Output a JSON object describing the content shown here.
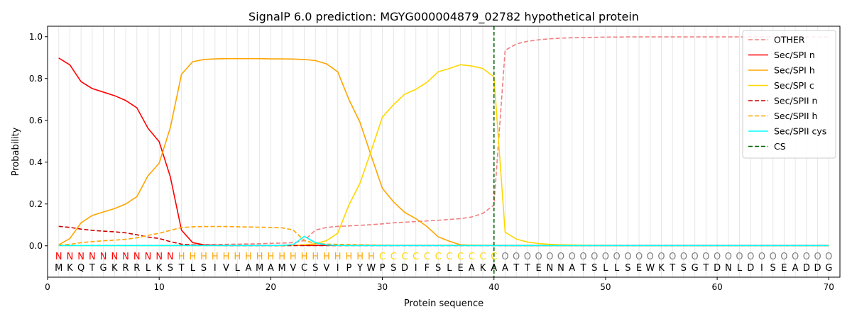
{
  "chart_data": {
    "type": "line",
    "title": "SignalP 6.0 prediction: MGYG000004879_02782 hypothetical protein",
    "xlabel": "Protein sequence",
    "ylabel": "Probability",
    "xlim": [
      0,
      71
    ],
    "ylim": [
      -0.15,
      1.05
    ],
    "x_ticks": [
      0,
      10,
      20,
      30,
      40,
      50,
      60,
      70
    ],
    "y_ticks": [
      0.0,
      0.2,
      0.4,
      0.6,
      0.8,
      1.0
    ],
    "y_tick_labels": [
      "0.0",
      "0.2",
      "0.4",
      "0.6",
      "0.8",
      "1.0"
    ],
    "grid": "vertical lines at each residue",
    "legend_position": "top-right",
    "sequence": [
      "M",
      "K",
      "Q",
      "T",
      "G",
      "K",
      "R",
      "R",
      "L",
      "K",
      "S",
      "T",
      "L",
      "S",
      "I",
      "V",
      "L",
      "A",
      "M",
      "A",
      "M",
      "V",
      "C",
      "S",
      "V",
      "I",
      "P",
      "Y",
      "W",
      "P",
      "S",
      "D",
      "I",
      "F",
      "S",
      "L",
      "E",
      "A",
      "K",
      "A",
      "A",
      "T",
      "T",
      "E",
      "N",
      "N",
      "A",
      "T",
      "S",
      "L",
      "L",
      "S",
      "E",
      "W",
      "K",
      "T",
      "S",
      "G",
      "T",
      "D",
      "N",
      "L",
      "D",
      "I",
      "S",
      "E",
      "A",
      "D",
      "D",
      "G"
    ],
    "labels": [
      "N",
      "N",
      "N",
      "N",
      "N",
      "N",
      "N",
      "N",
      "N",
      "N",
      "N",
      "H",
      "H",
      "H",
      "H",
      "H",
      "H",
      "H",
      "H",
      "H",
      "H",
      "H",
      "H",
      "H",
      "H",
      "H",
      "H",
      "H",
      "H",
      "C",
      "C",
      "C",
      "C",
      "C",
      "C",
      "C",
      "C",
      "C",
      "C",
      "C",
      "O",
      "O",
      "O",
      "O",
      "O",
      "O",
      "O",
      "O",
      "O",
      "O",
      "O",
      "O",
      "O",
      "O",
      "O",
      "O",
      "O",
      "O",
      "O",
      "O",
      "O",
      "O",
      "O",
      "O",
      "O",
      "O",
      "O",
      "O",
      "O",
      "O"
    ],
    "label_colors": {
      "N": "#ff0000",
      "H": "#ffa500",
      "C": "#ffd700",
      "O": "#808080"
    },
    "cs_position": 40,
    "series": [
      {
        "name": "OTHER",
        "color": "#f08080",
        "dash": true,
        "values": [
          0.002,
          0.002,
          0.002,
          0.002,
          0.002,
          0.002,
          0.002,
          0.002,
          0.002,
          0.002,
          0.002,
          0.003,
          0.004,
          0.005,
          0.006,
          0.007,
          0.008,
          0.009,
          0.01,
          0.012,
          0.013,
          0.015,
          0.025,
          0.075,
          0.088,
          0.093,
          0.095,
          0.098,
          0.101,
          0.105,
          0.11,
          0.113,
          0.116,
          0.119,
          0.122,
          0.126,
          0.13,
          0.138,
          0.155,
          0.195,
          0.935,
          0.965,
          0.978,
          0.985,
          0.99,
          0.993,
          0.995,
          0.996,
          0.997,
          0.998,
          0.998,
          0.999,
          0.999,
          0.999,
          0.999,
          0.999,
          0.999,
          0.999,
          0.999,
          0.999,
          0.999,
          0.999,
          0.999,
          0.999,
          0.999,
          0.999,
          0.999,
          0.999,
          0.999,
          0.999
        ]
      },
      {
        "name": "Sec/SPI n",
        "color": "#ff0000",
        "dash": false,
        "values": [
          0.898,
          0.865,
          0.785,
          0.752,
          0.735,
          0.718,
          0.695,
          0.66,
          0.562,
          0.498,
          0.33,
          0.075,
          0.015,
          0.005,
          0.003,
          0.002,
          0.002,
          0.002,
          0.002,
          0.002,
          0.002,
          0.002,
          0.002,
          0.002,
          0.002,
          0.002,
          0.002,
          0.002,
          0.002,
          0.002,
          0.002,
          0.002,
          0.002,
          0.002,
          0.002,
          0.002,
          0.002,
          0.002,
          0.002,
          0.002,
          0.002,
          0.002,
          0.002,
          0.002,
          0.002,
          0.002,
          0.002,
          0.002,
          0.002,
          0.002,
          0.002,
          0.002,
          0.002,
          0.002,
          0.002,
          0.002,
          0.002,
          0.002,
          0.002,
          0.002,
          0.002,
          0.002,
          0.002,
          0.002,
          0.002,
          0.002,
          0.002,
          0.002,
          0.002,
          0.002
        ]
      },
      {
        "name": "Sec/SPI h",
        "color": "#ffa500",
        "dash": false,
        "values": [
          0.005,
          0.035,
          0.11,
          0.145,
          0.162,
          0.178,
          0.2,
          0.235,
          0.335,
          0.395,
          0.565,
          0.82,
          0.88,
          0.891,
          0.894,
          0.895,
          0.895,
          0.895,
          0.895,
          0.894,
          0.894,
          0.893,
          0.891,
          0.886,
          0.87,
          0.832,
          0.7,
          0.59,
          0.43,
          0.275,
          0.21,
          0.16,
          0.13,
          0.092,
          0.043,
          0.022,
          0.005,
          0.003,
          0.002,
          0.002,
          0.001,
          0.001,
          0.001,
          0.001,
          0.001,
          0.001,
          0.001,
          0.001,
          0.001,
          0.001,
          0.001,
          0.001,
          0.001,
          0.001,
          0.001,
          0.001,
          0.001,
          0.001,
          0.001,
          0.001,
          0.001,
          0.001,
          0.001,
          0.001,
          0.001,
          0.001,
          0.001,
          0.001,
          0.001,
          0.001
        ]
      },
      {
        "name": "Sec/SPI c",
        "color": "#ffd700",
        "dash": false,
        "values": [
          0.001,
          0.001,
          0.001,
          0.001,
          0.001,
          0.001,
          0.001,
          0.001,
          0.001,
          0.001,
          0.001,
          0.001,
          0.001,
          0.001,
          0.001,
          0.001,
          0.001,
          0.001,
          0.001,
          0.001,
          0.001,
          0.002,
          0.005,
          0.01,
          0.025,
          0.06,
          0.195,
          0.3,
          0.455,
          0.615,
          0.675,
          0.725,
          0.748,
          0.782,
          0.832,
          0.848,
          0.866,
          0.86,
          0.848,
          0.808,
          0.065,
          0.032,
          0.018,
          0.011,
          0.007,
          0.005,
          0.004,
          0.003,
          0.002,
          0.002,
          0.001,
          0.001,
          0.001,
          0.001,
          0.001,
          0.001,
          0.001,
          0.001,
          0.001,
          0.001,
          0.001,
          0.001,
          0.001,
          0.001,
          0.001,
          0.001,
          0.001,
          0.001,
          0.001,
          0.001
        ]
      },
      {
        "name": "Sec/SPII n",
        "color": "#cc0000",
        "dash": true,
        "values": [
          0.093,
          0.088,
          0.08,
          0.074,
          0.07,
          0.067,
          0.062,
          0.053,
          0.042,
          0.035,
          0.02,
          0.008,
          0.004,
          0.002,
          0.002,
          0.001,
          0.001,
          0.001,
          0.001,
          0.001,
          0.001,
          0.001,
          0.001,
          0.001,
          0.001,
          0.001,
          0.001,
          0.001,
          0.001,
          0.001,
          0.001,
          0.001,
          0.001,
          0.001,
          0.001,
          0.001,
          0.001,
          0.001,
          0.001,
          0.001,
          0.001,
          0.001,
          0.001,
          0.001,
          0.001,
          0.001,
          0.001,
          0.001,
          0.001,
          0.001,
          0.001,
          0.001,
          0.001,
          0.001,
          0.001,
          0.001,
          0.001,
          0.001,
          0.001,
          0.001,
          0.001,
          0.001,
          0.001,
          0.001,
          0.001,
          0.001,
          0.001,
          0.001,
          0.001,
          0.001
        ]
      },
      {
        "name": "Sec/SPII h",
        "color": "#ffa500",
        "dash": true,
        "values": [
          0.003,
          0.007,
          0.015,
          0.02,
          0.024,
          0.027,
          0.031,
          0.038,
          0.05,
          0.06,
          0.074,
          0.087,
          0.091,
          0.092,
          0.092,
          0.092,
          0.091,
          0.09,
          0.089,
          0.088,
          0.086,
          0.076,
          0.025,
          0.012,
          0.008,
          0.007,
          0.006,
          0.005,
          0.004,
          0.003,
          0.002,
          0.002,
          0.002,
          0.002,
          0.002,
          0.002,
          0.002,
          0.002,
          0.002,
          0.002,
          0.001,
          0.001,
          0.001,
          0.001,
          0.001,
          0.001,
          0.001,
          0.001,
          0.001,
          0.001,
          0.001,
          0.001,
          0.001,
          0.001,
          0.001,
          0.001,
          0.001,
          0.001,
          0.001,
          0.001,
          0.001,
          0.001,
          0.001,
          0.001,
          0.001,
          0.001,
          0.001,
          0.001,
          0.001,
          0.001
        ]
      },
      {
        "name": "Sec/SPII cys",
        "color": "#00ffff",
        "dash": false,
        "values": [
          0.001,
          0.001,
          0.001,
          0.001,
          0.001,
          0.001,
          0.001,
          0.001,
          0.001,
          0.001,
          0.001,
          0.001,
          0.001,
          0.001,
          0.001,
          0.001,
          0.001,
          0.001,
          0.001,
          0.001,
          0.002,
          0.005,
          0.045,
          0.015,
          0.004,
          0.002,
          0.001,
          0.001,
          0.001,
          0.001,
          0.001,
          0.001,
          0.001,
          0.001,
          0.001,
          0.001,
          0.001,
          0.001,
          0.001,
          0.001,
          0.001,
          0.001,
          0.001,
          0.001,
          0.001,
          0.001,
          0.001,
          0.001,
          0.001,
          0.001,
          0.001,
          0.001,
          0.001,
          0.001,
          0.001,
          0.001,
          0.001,
          0.001,
          0.001,
          0.001,
          0.001,
          0.001,
          0.001,
          0.001,
          0.001,
          0.001,
          0.001,
          0.001,
          0.001,
          0.001
        ]
      }
    ],
    "legend_entries": [
      {
        "name": "OTHER",
        "color": "#f08080",
        "dash": true
      },
      {
        "name": "Sec/SPI n",
        "color": "#ff0000",
        "dash": false
      },
      {
        "name": "Sec/SPI h",
        "color": "#ffa500",
        "dash": false
      },
      {
        "name": "Sec/SPI c",
        "color": "#ffd700",
        "dash": false
      },
      {
        "name": "Sec/SPII n",
        "color": "#cc0000",
        "dash": true
      },
      {
        "name": "Sec/SPII h",
        "color": "#ffa500",
        "dash": true
      },
      {
        "name": "Sec/SPII cys",
        "color": "#00ffff",
        "dash": false
      },
      {
        "name": "CS",
        "color": "#006400",
        "dash": true
      }
    ]
  }
}
